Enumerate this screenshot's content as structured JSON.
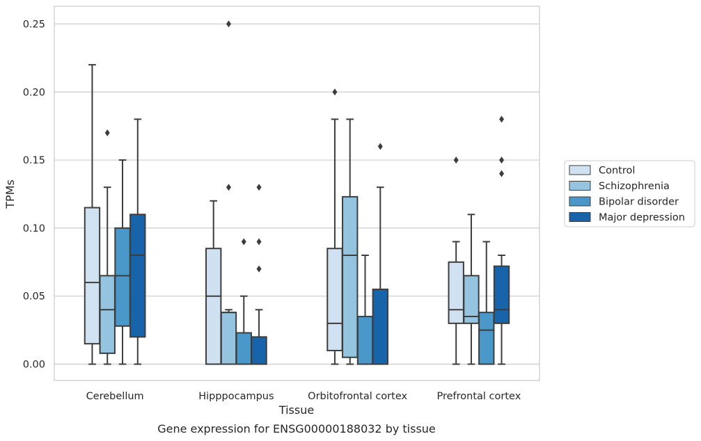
{
  "chart_data": {
    "type": "box",
    "title": "",
    "xlabel": "Tissue",
    "ylabel": "TPMs",
    "caption": "Gene expression for ENSG00000188032 by tissue",
    "ylim": [
      -0.012,
      0.263
    ],
    "yticks": [
      "0.00",
      "0.05",
      "0.10",
      "0.15",
      "0.20",
      "0.25"
    ],
    "grid": "horizontal",
    "legend_position": "right",
    "categories": [
      "Cerebellum",
      "Hipppocampus",
      "Orbitofrontal cortex",
      "Prefrontal cortex"
    ],
    "series": [
      {
        "name": "Control",
        "color": "#d0e1f2",
        "boxes": [
          {
            "min": 0.0,
            "q1": 0.015,
            "median": 0.06,
            "q3": 0.115,
            "max": 0.22,
            "outliers": []
          },
          {
            "min": 0.0,
            "q1": 0.0,
            "median": 0.05,
            "q3": 0.085,
            "max": 0.12,
            "outliers": []
          },
          {
            "min": 0.0,
            "q1": 0.01,
            "median": 0.03,
            "q3": 0.085,
            "max": 0.18,
            "outliers": [
              0.2
            ]
          },
          {
            "min": 0.0,
            "q1": 0.03,
            "median": 0.04,
            "q3": 0.075,
            "max": 0.09,
            "outliers": [
              0.15
            ]
          }
        ]
      },
      {
        "name": "Schizophrenia",
        "color": "#94c4df",
        "boxes": [
          {
            "min": 0.0,
            "q1": 0.008,
            "median": 0.04,
            "q3": 0.065,
            "max": 0.13,
            "outliers": [
              0.17
            ]
          },
          {
            "min": 0.0,
            "q1": 0.0,
            "median": 0.038,
            "q3": 0.038,
            "max": 0.04,
            "outliers": [
              0.13,
              0.25
            ]
          },
          {
            "min": 0.0,
            "q1": 0.005,
            "median": 0.08,
            "q3": 0.123,
            "max": 0.18,
            "outliers": []
          },
          {
            "min": 0.0,
            "q1": 0.03,
            "median": 0.035,
            "q3": 0.065,
            "max": 0.11,
            "outliers": []
          }
        ]
      },
      {
        "name": "Bipolar disorder",
        "color": "#4a98c9",
        "boxes": [
          {
            "min": 0.0,
            "q1": 0.028,
            "median": 0.065,
            "q3": 0.1,
            "max": 0.15,
            "outliers": []
          },
          {
            "min": 0.0,
            "q1": 0.0,
            "median": 0.0,
            "q3": 0.023,
            "max": 0.05,
            "outliers": [
              0.09
            ]
          },
          {
            "min": 0.0,
            "q1": 0.0,
            "median": 0.0,
            "q3": 0.035,
            "max": 0.08,
            "outliers": []
          },
          {
            "min": 0.0,
            "q1": 0.0,
            "median": 0.025,
            "q3": 0.038,
            "max": 0.09,
            "outliers": []
          }
        ]
      },
      {
        "name": "Major depression",
        "color": "#1764ab",
        "boxes": [
          {
            "min": 0.0,
            "q1": 0.02,
            "median": 0.08,
            "q3": 0.11,
            "max": 0.18,
            "outliers": []
          },
          {
            "min": 0.0,
            "q1": 0.0,
            "median": 0.0,
            "q3": 0.02,
            "max": 0.04,
            "outliers": [
              0.07,
              0.09,
              0.13
            ]
          },
          {
            "min": 0.0,
            "q1": 0.0,
            "median": 0.0,
            "q3": 0.055,
            "max": 0.13,
            "outliers": [
              0.16
            ]
          },
          {
            "min": 0.0,
            "q1": 0.03,
            "median": 0.04,
            "q3": 0.072,
            "max": 0.08,
            "outliers": [
              0.14,
              0.15,
              0.18
            ]
          }
        ]
      }
    ]
  }
}
